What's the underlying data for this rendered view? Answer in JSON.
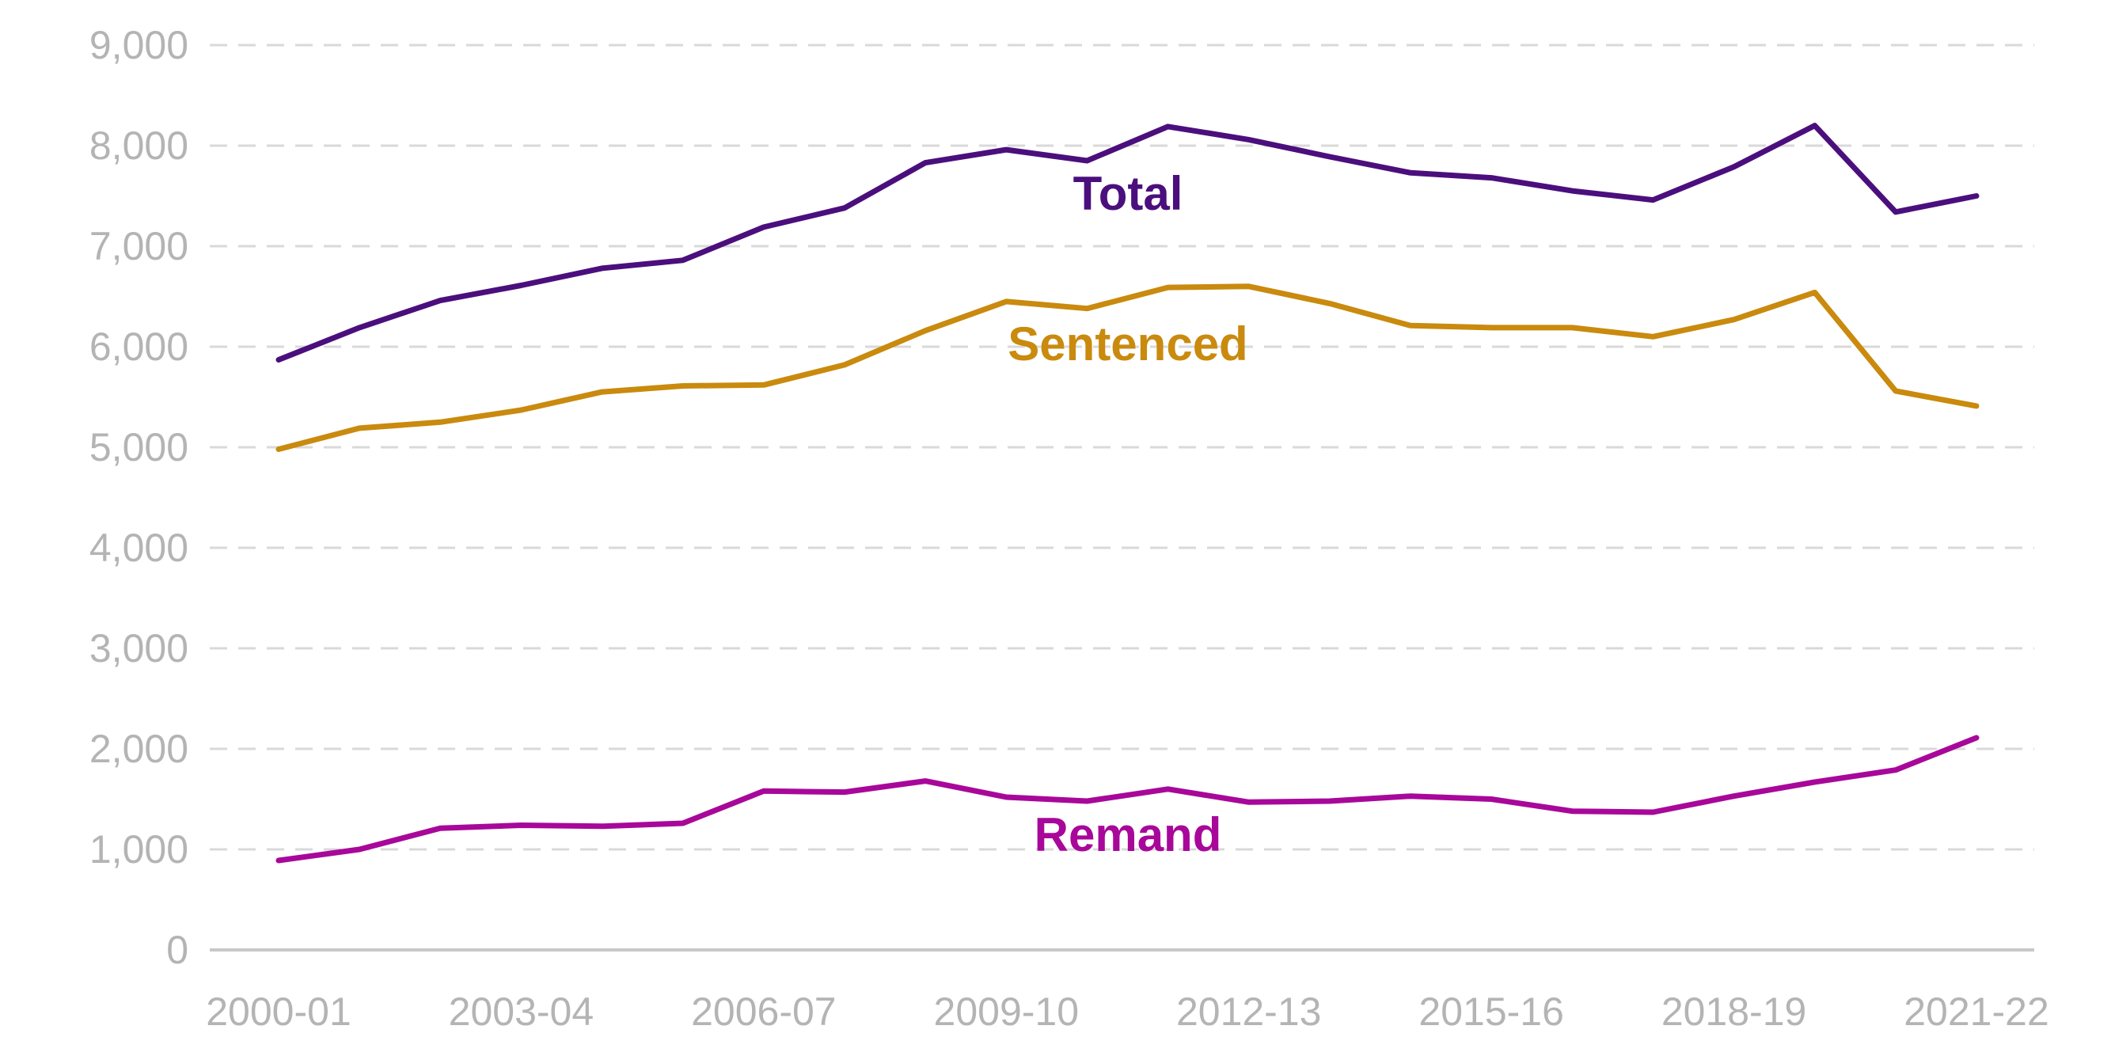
{
  "chart_data": {
    "type": "line",
    "title": "",
    "xlabel": "",
    "ylabel": "",
    "ylim": [
      0,
      9000
    ],
    "yticks": [
      0,
      1000,
      2000,
      3000,
      4000,
      5000,
      6000,
      7000,
      8000,
      9000
    ],
    "ytick_labels": [
      "0",
      "1,000",
      "2,000",
      "3,000",
      "4,000",
      "5,000",
      "6,000",
      "7,000",
      "8,000",
      "9,000"
    ],
    "categories": [
      "2000-01",
      "2001-02",
      "2002-03",
      "2003-04",
      "2004-05",
      "2005-06",
      "2006-07",
      "2007-08",
      "2008-09",
      "2009-10",
      "2010-11",
      "2011-12",
      "2012-13",
      "2013-14",
      "2014-15",
      "2015-16",
      "2016-17",
      "2017-18",
      "2018-19",
      "2019-20",
      "2020-21",
      "2021-22"
    ],
    "xtick_labels": [
      "2000-01",
      "2003-04",
      "2006-07",
      "2009-10",
      "2012-13",
      "2015-16",
      "2018-19",
      "2021-22"
    ],
    "grid": true,
    "legend": "inline labels",
    "series": [
      {
        "name": "Total",
        "color": "#4b0f7d",
        "values": [
          5870,
          6190,
          6460,
          6610,
          6780,
          6860,
          7190,
          7380,
          7830,
          7960,
          7850,
          8190,
          8060,
          7890,
          7730,
          7680,
          7550,
          7460,
          7790,
          8200,
          7340,
          7500
        ]
      },
      {
        "name": "Sentenced",
        "color": "#c98a0e",
        "values": [
          4980,
          5190,
          5250,
          5370,
          5550,
          5610,
          5620,
          5820,
          6160,
          6450,
          6380,
          6590,
          6600,
          6430,
          6210,
          6190,
          6190,
          6100,
          6270,
          6540,
          5560,
          5410
        ]
      },
      {
        "name": "Remand",
        "color": "#a8089a",
        "values": [
          890,
          1000,
          1210,
          1240,
          1230,
          1260,
          1580,
          1570,
          1680,
          1520,
          1480,
          1600,
          1470,
          1480,
          1530,
          1500,
          1380,
          1370,
          1530,
          1670,
          1790,
          2110
        ]
      }
    ]
  }
}
